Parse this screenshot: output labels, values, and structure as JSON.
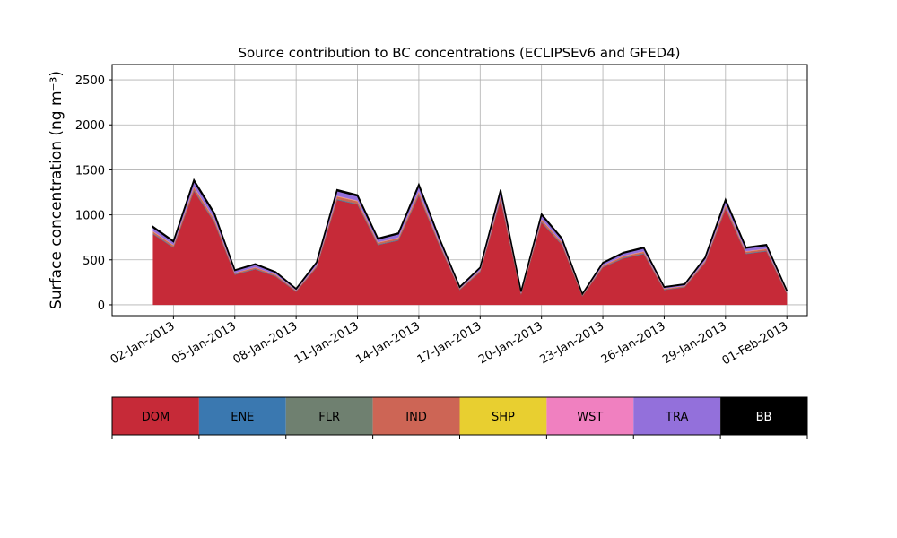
{
  "chart_data": {
    "type": "stacked_area",
    "title": "Source contribution to BC concentrations (ECLIPSEv6 and GFED4)",
    "y_label": "Surface concentration (ng m⁻³)",
    "x": [
      "2013-01-01",
      "2013-01-02",
      "2013-01-03",
      "2013-01-04",
      "2013-01-05",
      "2013-01-06",
      "2013-01-07",
      "2013-01-08",
      "2013-01-09",
      "2013-01-10",
      "2013-01-11",
      "2013-01-12",
      "2013-01-13",
      "2013-01-14",
      "2013-01-15",
      "2013-01-16",
      "2013-01-17",
      "2013-01-18",
      "2013-01-19",
      "2013-01-20",
      "2013-01-21",
      "2013-01-22",
      "2013-01-23",
      "2013-01-24",
      "2013-01-25",
      "2013-01-26",
      "2013-01-27",
      "2013-01-28",
      "2013-01-29",
      "2013-01-30",
      "2013-01-31",
      "2013-02-01"
    ],
    "series": [
      {
        "name": "DOM",
        "color": "#c62a38",
        "values": [
          785,
          635,
          1265,
          915,
          335,
          395,
          315,
          145,
          415,
          1165,
          1115,
          665,
          715,
          1215,
          665,
          165,
          365,
          1165,
          115,
          915,
          665,
          95,
          415,
          515,
          565,
          165,
          195,
          465,
          1065,
          565,
          595,
          125
        ]
      },
      {
        "name": "ENE",
        "color": "#3a78b0",
        "values": [
          5,
          5,
          6,
          6,
          4,
          4,
          4,
          3,
          4,
          6,
          6,
          5,
          5,
          6,
          5,
          3,
          4,
          6,
          3,
          5,
          5,
          3,
          4,
          5,
          5,
          3,
          3,
          4,
          6,
          5,
          5,
          3
        ]
      },
      {
        "name": "FLR",
        "color": "#6f8070",
        "values": [
          3,
          3,
          4,
          4,
          2,
          2,
          2,
          2,
          2,
          4,
          4,
          3,
          3,
          4,
          3,
          2,
          2,
          4,
          2,
          3,
          3,
          2,
          2,
          3,
          3,
          2,
          2,
          2,
          4,
          3,
          3,
          2
        ]
      },
      {
        "name": "IND",
        "color": "#cd6555",
        "values": [
          20,
          18,
          30,
          25,
          12,
          14,
          12,
          8,
          14,
          28,
          26,
          18,
          19,
          30,
          18,
          8,
          12,
          28,
          8,
          24,
          18,
          6,
          14,
          16,
          17,
          8,
          9,
          15,
          26,
          17,
          17,
          8
        ]
      },
      {
        "name": "SHP",
        "color": "#e8cf30",
        "values": [
          2,
          2,
          3,
          3,
          1,
          1,
          1,
          1,
          1,
          3,
          3,
          2,
          2,
          3,
          2,
          1,
          1,
          3,
          1,
          2,
          2,
          1,
          1,
          2,
          2,
          1,
          1,
          1,
          3,
          2,
          2,
          1
        ]
      },
      {
        "name": "WST",
        "color": "#f080c0",
        "values": [
          5,
          4,
          7,
          6,
          3,
          3,
          3,
          2,
          3,
          7,
          6,
          4,
          5,
          7,
          4,
          2,
          3,
          7,
          2,
          6,
          4,
          2,
          3,
          4,
          4,
          2,
          2,
          3,
          6,
          4,
          4,
          2
        ]
      },
      {
        "name": "TRA",
        "color": "#9370db",
        "values": [
          40,
          35,
          60,
          50,
          25,
          30,
          25,
          15,
          30,
          55,
          50,
          35,
          40,
          60,
          40,
          15,
          25,
          55,
          15,
          45,
          35,
          10,
          25,
          30,
          35,
          15,
          15,
          30,
          50,
          35,
          35,
          15
        ]
      },
      {
        "name": "BB",
        "color": "#000000",
        "values": [
          10,
          8,
          15,
          12,
          5,
          6,
          5,
          4,
          6,
          12,
          11,
          8,
          9,
          14,
          8,
          4,
          5,
          12,
          4,
          10,
          8,
          3,
          6,
          7,
          8,
          4,
          4,
          7,
          12,
          8,
          8,
          4
        ]
      }
    ],
    "xlim": [
      "2012-12-30",
      "2013-02-02"
    ],
    "xticks": [
      {
        "value": "2013-01-02",
        "label": "02-Jan-2013"
      },
      {
        "value": "2013-01-05",
        "label": "05-Jan-2013"
      },
      {
        "value": "2013-01-08",
        "label": "08-Jan-2013"
      },
      {
        "value": "2013-01-11",
        "label": "11-Jan-2013"
      },
      {
        "value": "2013-01-14",
        "label": "14-Jan-2013"
      },
      {
        "value": "2013-01-17",
        "label": "17-Jan-2013"
      },
      {
        "value": "2013-01-20",
        "label": "20-Jan-2013"
      },
      {
        "value": "2013-01-23",
        "label": "23-Jan-2013"
      },
      {
        "value": "2013-01-26",
        "label": "26-Jan-2013"
      },
      {
        "value": "2013-01-29",
        "label": "29-Jan-2013"
      },
      {
        "value": "2013-02-01",
        "label": "01-Feb-2013"
      }
    ],
    "ylim": [
      -120,
      2670
    ],
    "yticks": [
      0,
      500,
      1000,
      1500,
      2000,
      2500
    ],
    "grid": true,
    "legend": "bottom"
  }
}
